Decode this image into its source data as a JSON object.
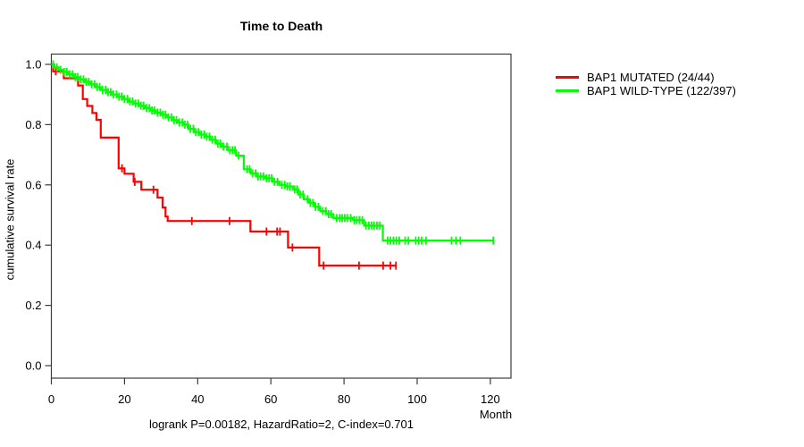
{
  "title": "Time to Death",
  "annotation": "logrank P=0.00182, HazardRatio=2, C-index=0.701",
  "legend": [
    {
      "label": "BAP1 MUTATED (24/44)",
      "color": "#ff0000"
    },
    {
      "label": "BAP1 WILD-TYPE (122/397)",
      "color": "#00ff00"
    }
  ],
  "chart_data": {
    "type": "line",
    "subtype": "kaplan-meier-step",
    "title": "Time to Death",
    "xlabel": "Month",
    "ylabel": "cumulative survival rate",
    "xlim": [
      0,
      125.6
    ],
    "ylim": [
      0,
      1.0
    ],
    "x_ticks": [
      0,
      20,
      40,
      60,
      80,
      100,
      120
    ],
    "y_ticks": [
      "0.0",
      "0.2",
      "0.4",
      "0.6",
      "0.8",
      "1.0"
    ],
    "grid": false,
    "legend_position": "right-outside",
    "stats": {
      "logrank_p": "0.00182",
      "hazard_ratio": "2",
      "c_index": "0.701"
    },
    "series": [
      {
        "name": "BAP1 MUTATED (24/44)",
        "color": "#ff0000",
        "n": 44,
        "events": 24,
        "end_month": 94.4,
        "points": [
          [
            0,
            1.0
          ],
          [
            0.5,
            0.977
          ],
          [
            3.4,
            0.954
          ],
          [
            7.3,
            0.93
          ],
          [
            8.6,
            0.885
          ],
          [
            9.8,
            0.862
          ],
          [
            11.2,
            0.839
          ],
          [
            12.3,
            0.816
          ],
          [
            13.5,
            0.757
          ],
          [
            18.4,
            0.655
          ],
          [
            20,
            0.637
          ],
          [
            22.5,
            0.61
          ],
          [
            24.6,
            0.584
          ],
          [
            29,
            0.558
          ],
          [
            30.4,
            0.525
          ],
          [
            31.2,
            0.495
          ],
          [
            31.8,
            0.48
          ],
          [
            54.4,
            0.445
          ],
          [
            64.7,
            0.392
          ],
          [
            73.2,
            0.332
          ]
        ],
        "censor_months": [
          1.2,
          19.3,
          22.8,
          27.9,
          38.4,
          48.7,
          58.8,
          61.7,
          62.5,
          65.9,
          74.4,
          84.1,
          90.7,
          92.7,
          94.2
        ]
      },
      {
        "name": "BAP1 WILD-TYPE (122/397)",
        "color": "#00ff00",
        "n": 397,
        "events": 122,
        "end_month": 120.8,
        "points": [
          [
            0,
            1.0
          ],
          [
            0.8,
            0.99
          ],
          [
            2,
            0.982
          ],
          [
            3.2,
            0.975
          ],
          [
            4.5,
            0.967
          ],
          [
            6,
            0.958
          ],
          [
            7.5,
            0.95
          ],
          [
            9,
            0.942
          ],
          [
            10.5,
            0.934
          ],
          [
            12,
            0.925
          ],
          [
            13.5,
            0.915
          ],
          [
            15,
            0.908
          ],
          [
            16.5,
            0.9
          ],
          [
            18,
            0.893
          ],
          [
            19.5,
            0.885
          ],
          [
            21,
            0.877
          ],
          [
            22.5,
            0.87
          ],
          [
            24,
            0.863
          ],
          [
            25.5,
            0.855
          ],
          [
            27,
            0.847
          ],
          [
            28.5,
            0.84
          ],
          [
            30,
            0.833
          ],
          [
            31.5,
            0.824
          ],
          [
            33,
            0.815
          ],
          [
            34.5,
            0.807
          ],
          [
            36,
            0.8
          ],
          [
            37.5,
            0.786
          ],
          [
            39,
            0.775
          ],
          [
            40.5,
            0.767
          ],
          [
            42,
            0.76
          ],
          [
            43.5,
            0.75
          ],
          [
            45,
            0.737
          ],
          [
            46.5,
            0.727
          ],
          [
            48.2,
            0.715
          ],
          [
            50.5,
            0.697
          ],
          [
            52.6,
            0.652
          ],
          [
            54.5,
            0.638
          ],
          [
            56.3,
            0.628
          ],
          [
            58.5,
            0.622
          ],
          [
            60.5,
            0.61
          ],
          [
            62.4,
            0.6
          ],
          [
            64,
            0.595
          ],
          [
            66,
            0.585
          ],
          [
            67.5,
            0.568
          ],
          [
            69,
            0.552
          ],
          [
            70.5,
            0.54
          ],
          [
            72,
            0.527
          ],
          [
            73.5,
            0.513
          ],
          [
            75.2,
            0.503
          ],
          [
            77.1,
            0.49
          ],
          [
            82.5,
            0.483
          ],
          [
            85.5,
            0.465
          ],
          [
            90.6,
            0.415
          ]
        ],
        "censor_months": [
          0.5,
          1.5,
          2.5,
          3.5,
          4.2,
          5,
          5.8,
          6.5,
          7.2,
          8,
          8.8,
          9.5,
          10.2,
          11,
          11.8,
          12.5,
          13.2,
          14,
          14.8,
          15.5,
          16.2,
          17,
          17.8,
          18.5,
          19.2,
          20,
          20.8,
          21.5,
          22.2,
          23,
          23.8,
          24.5,
          25.2,
          26,
          26.8,
          27.5,
          28.2,
          29,
          29.8,
          30.5,
          31.2,
          32,
          32.8,
          33.5,
          34.2,
          35,
          35.8,
          36.5,
          37.2,
          38,
          38.8,
          39.5,
          40.2,
          41,
          41.8,
          42.5,
          43.2,
          44,
          44.8,
          45.5,
          46.2,
          47,
          48,
          48.8,
          49.5,
          50.2,
          51.2,
          53.5,
          54.2,
          55,
          55.8,
          56.5,
          57.2,
          58,
          58.8,
          59.5,
          60.2,
          61,
          61.8,
          63,
          63.8,
          64.5,
          65.2,
          66.5,
          67.2,
          68,
          68.8,
          70,
          70.8,
          71.5,
          72.2,
          73,
          74.2,
          75,
          75.8,
          76.5,
          78,
          78.8,
          79.5,
          80.2,
          81,
          81.8,
          82.8,
          83.5,
          84.2,
          85,
          86,
          86.8,
          87.5,
          88.2,
          89,
          89.8,
          91.9,
          92.7,
          93.5,
          94.3,
          95.1,
          96.7,
          97.6,
          99.6,
          100.4,
          101.2,
          102.4,
          109.4,
          110.6,
          111.8,
          120.8
        ]
      }
    ]
  }
}
